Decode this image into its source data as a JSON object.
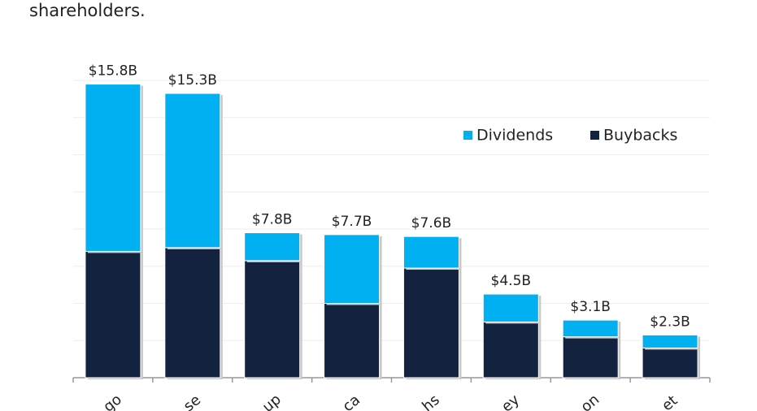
{
  "chart_data": {
    "type": "stacked-bar",
    "title": "shareholders.",
    "categories": [
      "go",
      "se",
      "up",
      "ca",
      "hs",
      "ey",
      "on",
      "et"
    ],
    "series": [
      {
        "name": "Dividends",
        "color": "#00b0f0",
        "values": [
          9.0,
          8.3,
          1.5,
          3.7,
          1.7,
          1.5,
          0.9,
          0.7
        ]
      },
      {
        "name": "Buybacks",
        "color": "#13233f",
        "values": [
          6.8,
          7.0,
          6.3,
          4.0,
          5.9,
          3.0,
          2.2,
          1.6
        ]
      }
    ],
    "stack_order": [
      "Buybacks",
      "Dividends"
    ],
    "totals": {
      "values": [
        15.8,
        15.3,
        7.8,
        7.7,
        7.6,
        4.5,
        3.1,
        2.3
      ],
      "value_labels": [
        "$15.8B",
        "$15.3B",
        "$7.8B",
        "$7.7B",
        "$7.6B",
        "$4.5B",
        "$3.1B",
        "$2.3B"
      ]
    },
    "ylim": [
      0,
      16
    ],
    "yticks": [
      0,
      2,
      4,
      6,
      8,
      10,
      12,
      14,
      16
    ],
    "grid": true,
    "legend": "upper right"
  }
}
